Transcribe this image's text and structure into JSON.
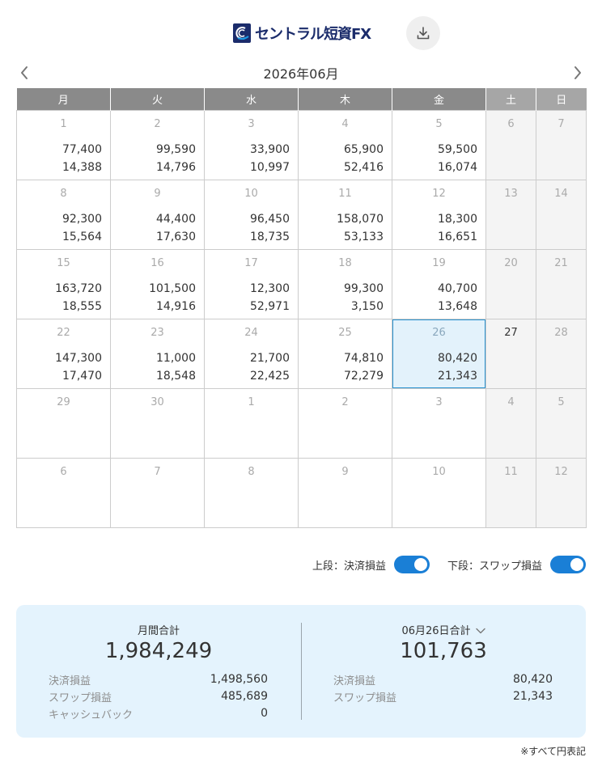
{
  "header": {
    "logo_text": "セントラル短資FX",
    "download_icon": "download-icon"
  },
  "nav": {
    "month_title": "2026年06月",
    "prev_icon": "chevron-left-icon",
    "next_icon": "chevron-right-icon"
  },
  "calendar": {
    "weekdays": [
      "月",
      "火",
      "水",
      "木",
      "金",
      "土",
      "日"
    ],
    "weeks": [
      [
        {
          "day": "1",
          "top": "77,400",
          "bottom": "14,388"
        },
        {
          "day": "2",
          "top": "99,590",
          "bottom": "14,796"
        },
        {
          "day": "3",
          "top": "33,900",
          "bottom": "10,997"
        },
        {
          "day": "4",
          "top": "65,900",
          "bottom": "52,416"
        },
        {
          "day": "5",
          "top": "59,500",
          "bottom": "16,074"
        },
        {
          "day": "6",
          "top": "",
          "bottom": ""
        },
        {
          "day": "7",
          "top": "",
          "bottom": ""
        }
      ],
      [
        {
          "day": "8",
          "top": "92,300",
          "bottom": "15,564"
        },
        {
          "day": "9",
          "top": "44,400",
          "bottom": "17,630"
        },
        {
          "day": "10",
          "top": "96,450",
          "bottom": "18,735"
        },
        {
          "day": "11",
          "top": "158,070",
          "bottom": "53,133"
        },
        {
          "day": "12",
          "top": "18,300",
          "bottom": "16,651"
        },
        {
          "day": "13",
          "top": "",
          "bottom": ""
        },
        {
          "day": "14",
          "top": "",
          "bottom": ""
        }
      ],
      [
        {
          "day": "15",
          "top": "163,720",
          "bottom": "18,555"
        },
        {
          "day": "16",
          "top": "101,500",
          "bottom": "14,916"
        },
        {
          "day": "17",
          "top": "12,300",
          "bottom": "52,971"
        },
        {
          "day": "18",
          "top": "99,300",
          "bottom": "3,150"
        },
        {
          "day": "19",
          "top": "40,700",
          "bottom": "13,648"
        },
        {
          "day": "20",
          "top": "",
          "bottom": ""
        },
        {
          "day": "21",
          "top": "",
          "bottom": ""
        }
      ],
      [
        {
          "day": "22",
          "top": "147,300",
          "bottom": "17,470"
        },
        {
          "day": "23",
          "top": "11,000",
          "bottom": "18,548"
        },
        {
          "day": "24",
          "top": "21,700",
          "bottom": "22,425"
        },
        {
          "day": "25",
          "top": "74,810",
          "bottom": "72,279"
        },
        {
          "day": "26",
          "top": "80,420",
          "bottom": "21,343",
          "selected": true
        },
        {
          "day": "27",
          "top": "",
          "bottom": "",
          "today": true
        },
        {
          "day": "28",
          "top": "",
          "bottom": ""
        }
      ],
      [
        {
          "day": "29",
          "top": "",
          "bottom": ""
        },
        {
          "day": "30",
          "top": "",
          "bottom": ""
        },
        {
          "day": "1",
          "top": "",
          "bottom": ""
        },
        {
          "day": "2",
          "top": "",
          "bottom": ""
        },
        {
          "day": "3",
          "top": "",
          "bottom": ""
        },
        {
          "day": "4",
          "top": "",
          "bottom": ""
        },
        {
          "day": "5",
          "top": "",
          "bottom": ""
        }
      ],
      [
        {
          "day": "6",
          "top": "",
          "bottom": ""
        },
        {
          "day": "7",
          "top": "",
          "bottom": ""
        },
        {
          "day": "8",
          "top": "",
          "bottom": ""
        },
        {
          "day": "9",
          "top": "",
          "bottom": ""
        },
        {
          "day": "10",
          "top": "",
          "bottom": ""
        },
        {
          "day": "11",
          "top": "",
          "bottom": ""
        },
        {
          "day": "12",
          "top": "",
          "bottom": ""
        }
      ]
    ]
  },
  "toggles": {
    "upper_label": "上段：決済損益",
    "lower_label": "下段：スワップ損益",
    "upper_on": true,
    "lower_on": true
  },
  "summary": {
    "monthly": {
      "title": "月間合計",
      "total": "1,984,249",
      "rows": [
        {
          "label": "決済損益",
          "value": "1,498,560"
        },
        {
          "label": "スワップ損益",
          "value": "485,689"
        },
        {
          "label": "キャッシュバック",
          "value": "0"
        }
      ]
    },
    "daily": {
      "title": "06月26日合計",
      "total": "101,763",
      "rows": [
        {
          "label": "決済損益",
          "value": "80,420"
        },
        {
          "label": "スワップ損益",
          "value": "21,343"
        }
      ]
    }
  },
  "footnote": "※すべて円表記",
  "colors": {
    "header_weekday": "#8a8a8a",
    "header_weekend": "#a6a6a6",
    "toggle_on": "#1a7fd6",
    "summary_bg": "#e4f3fd",
    "selected_border": "#2a93d0"
  }
}
